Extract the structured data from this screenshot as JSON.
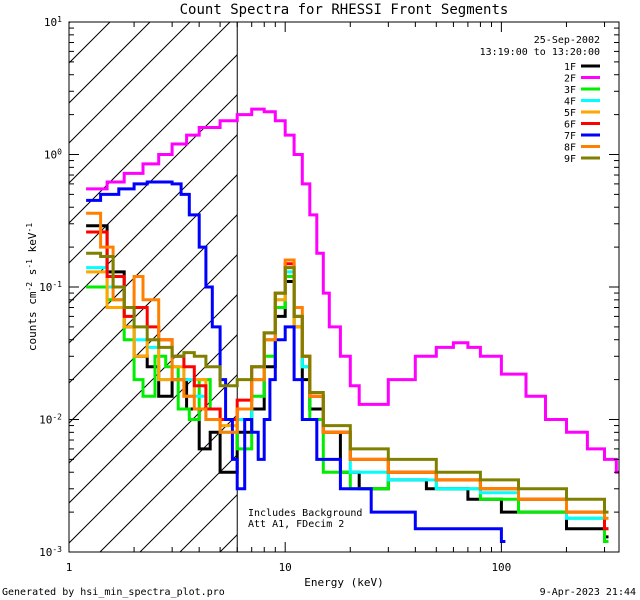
{
  "chart_data": {
    "type": "line",
    "title": "Count Spectra for RHESSI Front Segments",
    "xlabel": "Energy (keV)",
    "ylabel_base": "counts cm",
    "ylabel_exp1": "-2",
    "ylabel_mid": " s",
    "ylabel_exp2": "-1",
    "ylabel_end": " keV",
    "ylabel_exp3": "-1",
    "x_scale": "log",
    "y_scale": "log",
    "xlim": [
      1.0,
      350.0
    ],
    "ylim": [
      0.001,
      10.0
    ],
    "x_ticks": [
      {
        "value": 1,
        "label": "1"
      },
      {
        "value": 10,
        "label": "10"
      },
      {
        "value": 100,
        "label": "100"
      }
    ],
    "y_ticks": [
      {
        "value": 10,
        "base": "10",
        "exp": "1"
      },
      {
        "value": 1,
        "base": "10",
        "exp": "0"
      },
      {
        "value": 0.1,
        "base": "10",
        "exp": "-1"
      },
      {
        "value": 0.01,
        "base": "10",
        "exp": "-2"
      },
      {
        "value": 0.001,
        "base": "10",
        "exp": "-3"
      }
    ],
    "hatch_xmax": 6.0,
    "date": "25-Sep-2002",
    "time_range": "13:19:00 to 13:20:00",
    "annotation_line1": "Includes Background",
    "annotation_line2": "Att A1, FDecim 2",
    "legend_position": "top-right",
    "series": [
      {
        "name": "1F",
        "color": "#000000",
        "points": [
          [
            1.2,
            0.29
          ],
          [
            1.5,
            0.13
          ],
          [
            1.8,
            0.05
          ],
          [
            2.0,
            0.03
          ],
          [
            2.3,
            0.025
          ],
          [
            2.6,
            0.015
          ],
          [
            3.0,
            0.02
          ],
          [
            3.5,
            0.012
          ],
          [
            4.0,
            0.006
          ],
          [
            4.5,
            0.008
          ],
          [
            5.0,
            0.004
          ],
          [
            6.0,
            0.008
          ],
          [
            7.0,
            0.012
          ],
          [
            8.0,
            0.025
          ],
          [
            9.0,
            0.06
          ],
          [
            10.0,
            0.11
          ],
          [
            11.0,
            0.05
          ],
          [
            12.0,
            0.02
          ],
          [
            13.0,
            0.012
          ],
          [
            15.0,
            0.008
          ],
          [
            18.0,
            0.004
          ],
          [
            22.0,
            0.003
          ],
          [
            30.0,
            0.0035
          ],
          [
            45.0,
            0.003
          ],
          [
            70.0,
            0.0025
          ],
          [
            100.0,
            0.002
          ],
          [
            150.0,
            0.002
          ],
          [
            200.0,
            0.0015
          ],
          [
            300.0,
            0.0013
          ]
        ]
      },
      {
        "name": "2F",
        "color": "#ff00ff",
        "points": [
          [
            1.2,
            0.55
          ],
          [
            1.5,
            0.62
          ],
          [
            1.8,
            0.72
          ],
          [
            2.2,
            0.85
          ],
          [
            2.6,
            1.0
          ],
          [
            3.0,
            1.2
          ],
          [
            3.5,
            1.4
          ],
          [
            4.0,
            1.6
          ],
          [
            5.0,
            1.8
          ],
          [
            6.0,
            2.0
          ],
          [
            7.0,
            2.2
          ],
          [
            8.0,
            2.1
          ],
          [
            9.0,
            1.8
          ],
          [
            10.0,
            1.4
          ],
          [
            11.0,
            1.0
          ],
          [
            12.0,
            0.6
          ],
          [
            13.0,
            0.35
          ],
          [
            14.0,
            0.18
          ],
          [
            15.0,
            0.09
          ],
          [
            16.0,
            0.05
          ],
          [
            18.0,
            0.03
          ],
          [
            20.0,
            0.018
          ],
          [
            22.0,
            0.013
          ],
          [
            25.0,
            0.013
          ],
          [
            30.0,
            0.02
          ],
          [
            40.0,
            0.03
          ],
          [
            50.0,
            0.035
          ],
          [
            60.0,
            0.038
          ],
          [
            70.0,
            0.035
          ],
          [
            80.0,
            0.03
          ],
          [
            100.0,
            0.022
          ],
          [
            130.0,
            0.015
          ],
          [
            160.0,
            0.01
          ],
          [
            200.0,
            0.008
          ],
          [
            250.0,
            0.006
          ],
          [
            300.0,
            0.005
          ],
          [
            340.0,
            0.004
          ]
        ]
      },
      {
        "name": "3F",
        "color": "#00ee00",
        "points": [
          [
            1.2,
            0.1
          ],
          [
            1.5,
            0.08
          ],
          [
            1.8,
            0.04
          ],
          [
            2.0,
            0.02
          ],
          [
            2.2,
            0.015
          ],
          [
            2.5,
            0.03
          ],
          [
            2.8,
            0.025
          ],
          [
            3.2,
            0.012
          ],
          [
            3.6,
            0.01
          ],
          [
            4.0,
            0.02
          ],
          [
            4.5,
            0.012
          ],
          [
            5.0,
            0.01
          ],
          [
            6.0,
            0.006
          ],
          [
            7.0,
            0.015
          ],
          [
            8.0,
            0.03
          ],
          [
            9.0,
            0.07
          ],
          [
            10.0,
            0.12
          ],
          [
            11.0,
            0.05
          ],
          [
            12.0,
            0.025
          ],
          [
            13.0,
            0.01
          ],
          [
            15.0,
            0.004
          ],
          [
            20.0,
            0.003
          ],
          [
            30.0,
            0.004
          ],
          [
            50.0,
            0.003
          ],
          [
            80.0,
            0.0025
          ],
          [
            120.0,
            0.002
          ],
          [
            200.0,
            0.0018
          ],
          [
            300.0,
            0.0012
          ]
        ]
      },
      {
        "name": "4F",
        "color": "#00ffff",
        "points": [
          [
            1.2,
            0.14
          ],
          [
            1.5,
            0.1
          ],
          [
            1.8,
            0.06
          ],
          [
            2.0,
            0.04
          ],
          [
            2.3,
            0.035
          ],
          [
            2.6,
            0.02
          ],
          [
            3.0,
            0.03
          ],
          [
            3.4,
            0.02
          ],
          [
            3.8,
            0.015
          ],
          [
            4.3,
            0.01
          ],
          [
            5.0,
            0.008
          ],
          [
            6.0,
            0.01
          ],
          [
            7.0,
            0.02
          ],
          [
            8.0,
            0.04
          ],
          [
            9.0,
            0.08
          ],
          [
            10.0,
            0.13
          ],
          [
            11.0,
            0.06
          ],
          [
            12.0,
            0.025
          ],
          [
            13.0,
            0.015
          ],
          [
            15.0,
            0.008
          ],
          [
            20.0,
            0.004
          ],
          [
            30.0,
            0.0035
          ],
          [
            50.0,
            0.003
          ],
          [
            80.0,
            0.0028
          ],
          [
            120.0,
            0.0025
          ],
          [
            200.0,
            0.0018
          ],
          [
            300.0,
            0.0015
          ]
        ]
      },
      {
        "name": "5F",
        "color": "#ffa500",
        "points": [
          [
            1.2,
            0.13
          ],
          [
            1.5,
            0.07
          ],
          [
            1.8,
            0.05
          ],
          [
            2.0,
            0.03
          ],
          [
            2.3,
            0.04
          ],
          [
            2.6,
            0.02
          ],
          [
            3.0,
            0.025
          ],
          [
            3.4,
            0.015
          ],
          [
            3.8,
            0.02
          ],
          [
            4.3,
            0.012
          ],
          [
            5.0,
            0.009
          ],
          [
            6.0,
            0.012
          ],
          [
            7.0,
            0.02
          ],
          [
            8.0,
            0.04
          ],
          [
            9.0,
            0.08
          ],
          [
            10.0,
            0.14
          ],
          [
            11.0,
            0.05
          ],
          [
            12.0,
            0.03
          ],
          [
            13.0,
            0.015
          ],
          [
            15.0,
            0.008
          ],
          [
            20.0,
            0.005
          ],
          [
            30.0,
            0.004
          ],
          [
            50.0,
            0.0035
          ],
          [
            80.0,
            0.003
          ],
          [
            120.0,
            0.0025
          ],
          [
            200.0,
            0.002
          ],
          [
            300.0,
            0.0015
          ]
        ]
      },
      {
        "name": "6F",
        "color": "#ff0000",
        "points": [
          [
            1.2,
            0.26
          ],
          [
            1.5,
            0.12
          ],
          [
            1.8,
            0.06
          ],
          [
            2.0,
            0.07
          ],
          [
            2.3,
            0.05
          ],
          [
            2.6,
            0.04
          ],
          [
            3.0,
            0.03
          ],
          [
            3.4,
            0.025
          ],
          [
            3.8,
            0.018
          ],
          [
            4.3,
            0.012
          ],
          [
            5.0,
            0.01
          ],
          [
            6.0,
            0.014
          ],
          [
            7.0,
            0.025
          ],
          [
            8.0,
            0.045
          ],
          [
            9.0,
            0.09
          ],
          [
            10.0,
            0.15
          ],
          [
            11.0,
            0.06
          ],
          [
            12.0,
            0.03
          ],
          [
            13.0,
            0.015
          ],
          [
            15.0,
            0.008
          ],
          [
            20.0,
            0.005
          ],
          [
            30.0,
            0.004
          ],
          [
            50.0,
            0.0035
          ],
          [
            80.0,
            0.003
          ],
          [
            120.0,
            0.0025
          ],
          [
            200.0,
            0.002
          ],
          [
            300.0,
            0.0015
          ]
        ]
      },
      {
        "name": "7F",
        "color": "#0000ff",
        "points": [
          [
            1.2,
            0.45
          ],
          [
            1.4,
            0.5
          ],
          [
            1.7,
            0.55
          ],
          [
            2.0,
            0.6
          ],
          [
            2.3,
            0.62
          ],
          [
            2.6,
            0.62
          ],
          [
            3.0,
            0.6
          ],
          [
            3.3,
            0.5
          ],
          [
            3.6,
            0.35
          ],
          [
            4.0,
            0.2
          ],
          [
            4.3,
            0.1
          ],
          [
            4.6,
            0.05
          ],
          [
            5.0,
            0.02
          ],
          [
            5.3,
            0.01
          ],
          [
            5.7,
            0.005
          ],
          [
            6.0,
            0.003
          ],
          [
            6.5,
            0.01
          ],
          [
            7.0,
            0.008
          ],
          [
            7.5,
            0.005
          ],
          [
            8.0,
            0.01
          ],
          [
            8.5,
            0.02
          ],
          [
            9.0,
            0.04
          ],
          [
            10.0,
            0.05
          ],
          [
            11.0,
            0.02
          ],
          [
            12.0,
            0.01
          ],
          [
            14.0,
            0.005
          ],
          [
            18.0,
            0.003
          ],
          [
            25.0,
            0.002
          ],
          [
            40.0,
            0.0015
          ],
          [
            60.0,
            0.0015
          ],
          [
            100.0,
            0.0012
          ]
        ]
      },
      {
        "name": "8F",
        "color": "#ff8000",
        "points": [
          [
            1.2,
            0.36
          ],
          [
            1.4,
            0.2
          ],
          [
            1.6,
            0.08
          ],
          [
            1.8,
            0.07
          ],
          [
            2.0,
            0.12
          ],
          [
            2.2,
            0.08
          ],
          [
            2.6,
            0.04
          ],
          [
            3.0,
            0.02
          ],
          [
            3.4,
            0.015
          ],
          [
            3.8,
            0.012
          ],
          [
            4.3,
            0.01
          ],
          [
            5.0,
            0.008
          ],
          [
            6.0,
            0.012
          ],
          [
            7.0,
            0.02
          ],
          [
            8.0,
            0.04
          ],
          [
            9.0,
            0.09
          ],
          [
            10.0,
            0.16
          ],
          [
            11.0,
            0.07
          ],
          [
            12.0,
            0.03
          ],
          [
            13.0,
            0.015
          ],
          [
            15.0,
            0.008
          ],
          [
            20.0,
            0.005
          ],
          [
            30.0,
            0.004
          ],
          [
            50.0,
            0.0035
          ],
          [
            80.0,
            0.003
          ],
          [
            120.0,
            0.0025
          ],
          [
            200.0,
            0.002
          ],
          [
            300.0,
            0.0018
          ]
        ]
      },
      {
        "name": "9F",
        "color": "#808000",
        "points": [
          [
            1.2,
            0.18
          ],
          [
            1.4,
            0.17
          ],
          [
            1.6,
            0.1
          ],
          [
            1.8,
            0.07
          ],
          [
            2.0,
            0.05
          ],
          [
            2.3,
            0.04
          ],
          [
            2.6,
            0.035
          ],
          [
            3.0,
            0.03
          ],
          [
            3.4,
            0.032
          ],
          [
            3.8,
            0.03
          ],
          [
            4.3,
            0.025
          ],
          [
            5.0,
            0.018
          ],
          [
            6.0,
            0.02
          ],
          [
            7.0,
            0.025
          ],
          [
            8.0,
            0.045
          ],
          [
            9.0,
            0.09
          ],
          [
            10.0,
            0.14
          ],
          [
            11.0,
            0.06
          ],
          [
            12.0,
            0.03
          ],
          [
            13.0,
            0.016
          ],
          [
            15.0,
            0.009
          ],
          [
            20.0,
            0.006
          ],
          [
            30.0,
            0.005
          ],
          [
            50.0,
            0.004
          ],
          [
            80.0,
            0.0035
          ],
          [
            120.0,
            0.003
          ],
          [
            200.0,
            0.0025
          ],
          [
            300.0,
            0.002
          ]
        ]
      }
    ]
  },
  "footer": {
    "generator": "Generated by hsi_min_spectra_plot.pro",
    "timestamp": "9-Apr-2023 21:44"
  }
}
